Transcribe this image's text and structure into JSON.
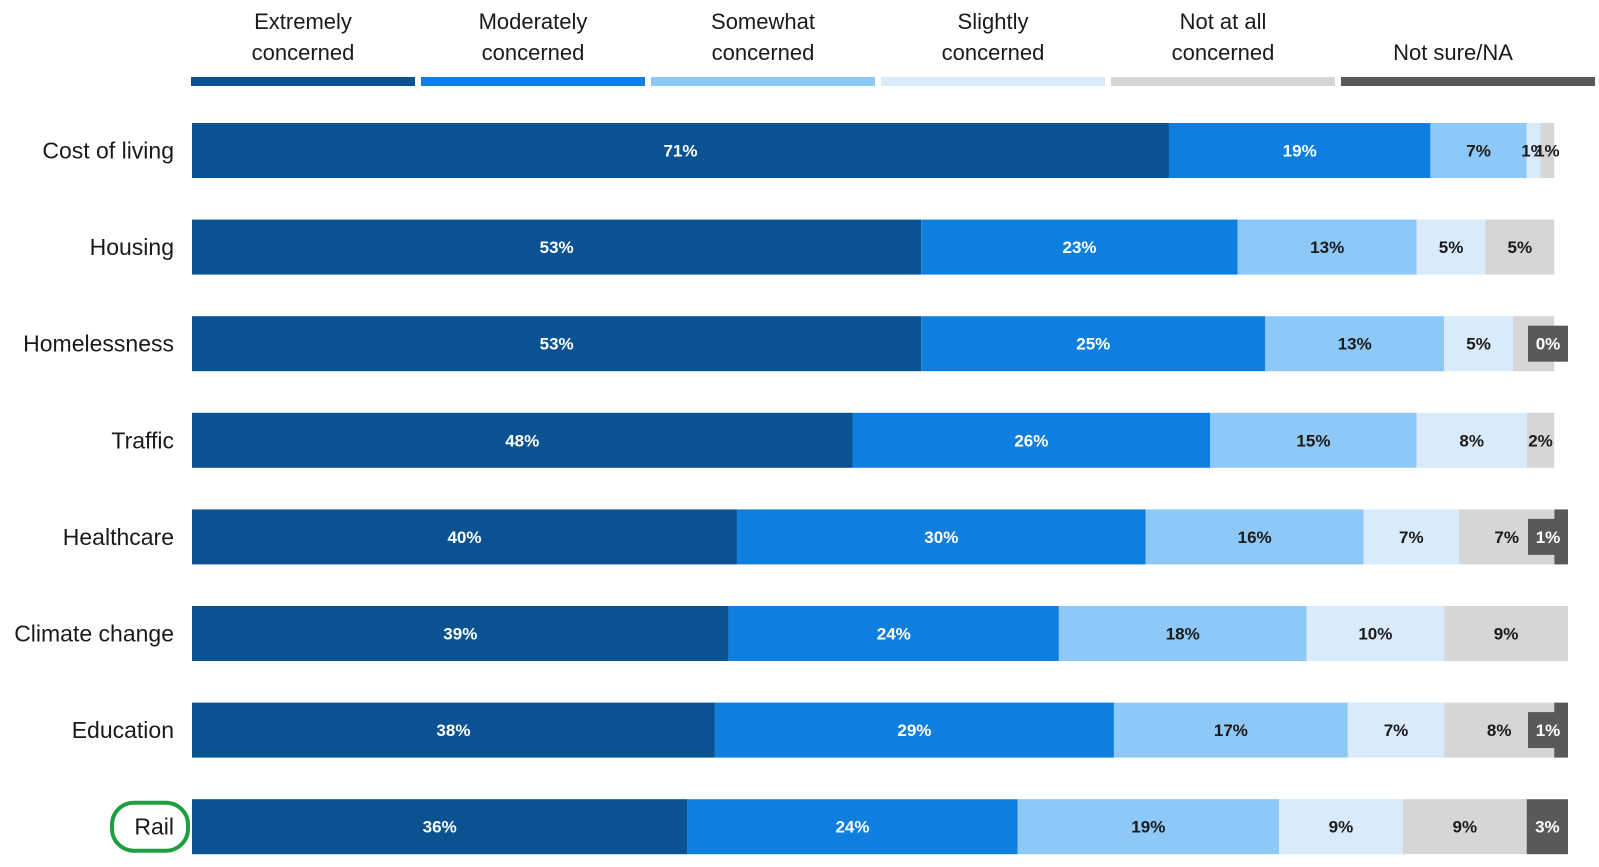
{
  "chart_data": {
    "type": "bar",
    "orientation": "horizontal",
    "stacked": true,
    "legend_position": "top",
    "grid": false,
    "xlim": [
      0,
      100
    ],
    "categories": [
      "Cost of living",
      "Housing",
      "Homelessness",
      "Traffic",
      "Healthcare",
      "Climate change",
      "Education",
      "Rail"
    ],
    "highlighted_category": "Rail",
    "highlight_color": "#1f9e3f",
    "series": [
      {
        "name": "Extremely concerned",
        "legend_lines": [
          "Extremely",
          "concerned"
        ],
        "color": "#0a5291",
        "label_color": "#ffffff",
        "values": [
          71,
          53,
          53,
          48,
          40,
          39,
          38,
          36
        ],
        "labels": [
          "71%",
          "53%",
          "53%",
          "48%",
          "40%",
          "39%",
          "38%",
          "36%"
        ]
      },
      {
        "name": "Moderately concerned",
        "legend_lines": [
          "Moderately",
          "concerned"
        ],
        "color": "#0f7fdf",
        "label_color": "#ffffff",
        "values": [
          19,
          23,
          25,
          26,
          30,
          24,
          29,
          24
        ],
        "labels": [
          "19%",
          "23%",
          "25%",
          "26%",
          "30%",
          "24%",
          "29%",
          "24%"
        ]
      },
      {
        "name": "Somewhat concerned",
        "legend_lines": [
          "Somewhat",
          "concerned"
        ],
        "color": "#8ec8f6",
        "label_color": "#1a1a1a",
        "values": [
          7,
          13,
          13,
          15,
          16,
          18,
          17,
          19
        ],
        "labels": [
          "7%",
          "13%",
          "13%",
          "15%",
          "16%",
          "18%",
          "17%",
          "19%"
        ]
      },
      {
        "name": "Slightly concerned",
        "legend_lines": [
          "Slightly",
          "concerned"
        ],
        "color": "#d9ebfb",
        "label_color": "#1a1a1a",
        "values": [
          1,
          5,
          5,
          8,
          7,
          10,
          7,
          9
        ],
        "labels": [
          "1%",
          "5%",
          "5%",
          "8%",
          "7%",
          "10%",
          "7%",
          "9%"
        ]
      },
      {
        "name": "Not at all concerned",
        "legend_lines": [
          "Not at all",
          "concerned"
        ],
        "color": "#d6d6d6",
        "label_color": "#1a1a1a",
        "values": [
          1,
          5,
          3,
          2,
          7,
          9,
          8,
          9
        ],
        "labels": [
          "1%",
          "5%",
          "",
          "2%",
          "7%",
          "9%",
          "8%",
          "9%"
        ]
      },
      {
        "name": "Not sure/NA",
        "legend_lines": [
          "Not sure/NA"
        ],
        "color": "#595959",
        "label_color": "#ffffff",
        "values": [
          0,
          0,
          0,
          0,
          1,
          0,
          1,
          3
        ],
        "labels": [
          "",
          "",
          "0%",
          "",
          "1%",
          "",
          "1%",
          "3%"
        ]
      }
    ]
  }
}
